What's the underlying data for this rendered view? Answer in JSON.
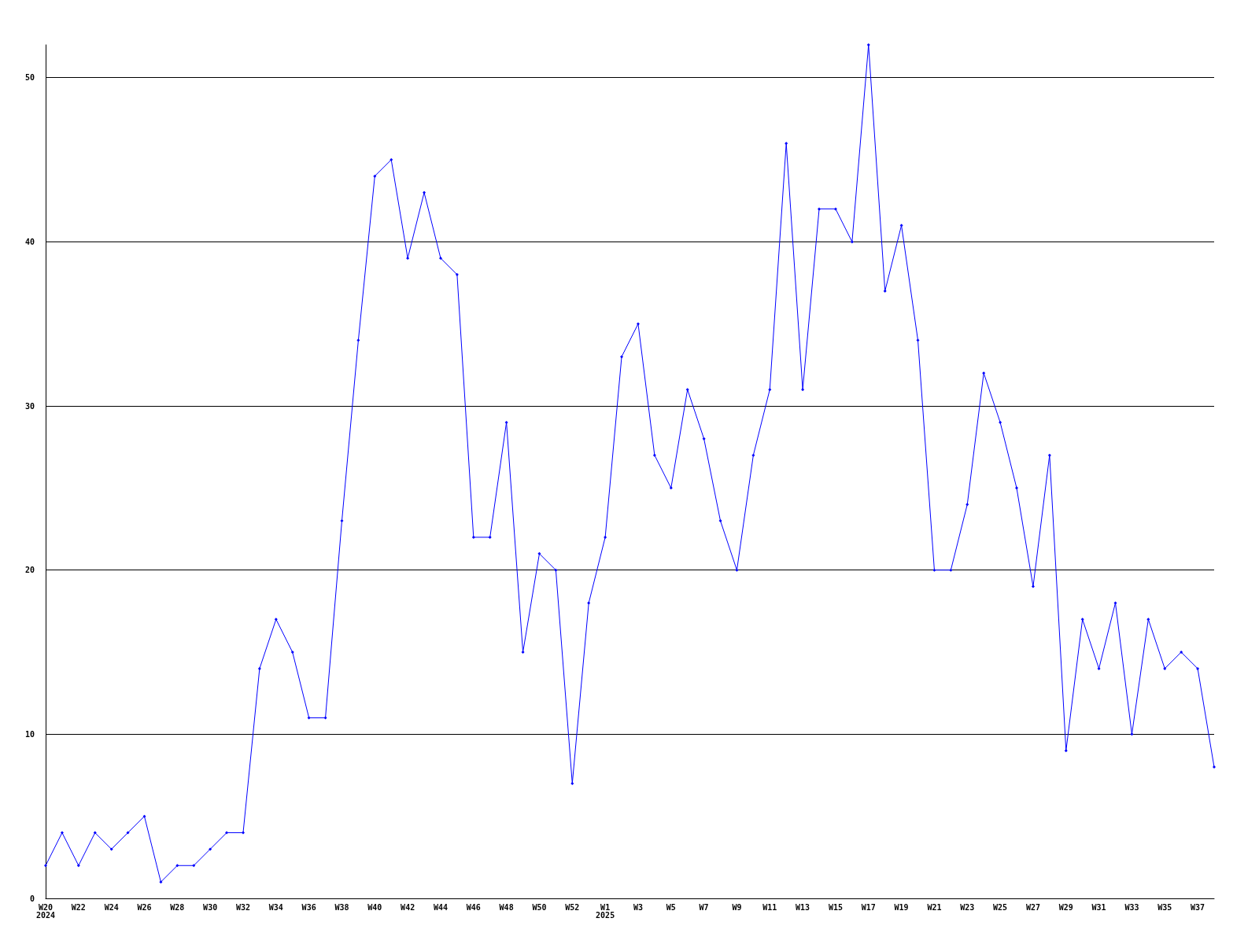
{
  "chart_data": {
    "type": "line",
    "categories": [
      "W20\n2024",
      null,
      "W22",
      null,
      "W24",
      null,
      "W26",
      null,
      "W28",
      null,
      "W30",
      null,
      "W32",
      null,
      "W34",
      null,
      "W36",
      null,
      "W38",
      null,
      "W40",
      null,
      "W42",
      null,
      "W44",
      null,
      "W46",
      null,
      "W48",
      null,
      "W50",
      null,
      "W52",
      null,
      "W1\n2025",
      null,
      "W3",
      null,
      "W5",
      null,
      "W7",
      null,
      "W9",
      null,
      "W11",
      null,
      "W13",
      null,
      "W15",
      null,
      "W17",
      null,
      "W19",
      null,
      "W21",
      null,
      "W23",
      null,
      "W25",
      null,
      "W27",
      null,
      "W29",
      null,
      "W31",
      null,
      "W33",
      null,
      "W35",
      null,
      "W37",
      null
    ],
    "series": [
      {
        "color": "#0000ff",
        "values": [
          2,
          4,
          2,
          4,
          3,
          4,
          5,
          1,
          2,
          2,
          3,
          4,
          4,
          14,
          17,
          15,
          11,
          11,
          23,
          34,
          44,
          45,
          39,
          43,
          39,
          38,
          22,
          22,
          29,
          15,
          21,
          20,
          7,
          18,
          22,
          33,
          35,
          27,
          25,
          31,
          28,
          23,
          20,
          27,
          31,
          46,
          31,
          42,
          42,
          40,
          52,
          37,
          41,
          34,
          20,
          20,
          24,
          32,
          29,
          25,
          19,
          27,
          9,
          17,
          14,
          18,
          10,
          17,
          14,
          15,
          14,
          8
        ]
      }
    ],
    "ylim": [
      0,
      52
    ],
    "yticks": [
      0,
      10,
      20,
      30,
      40,
      50
    ],
    "grid": "y",
    "marker": "diamond",
    "line_style": "solid"
  }
}
